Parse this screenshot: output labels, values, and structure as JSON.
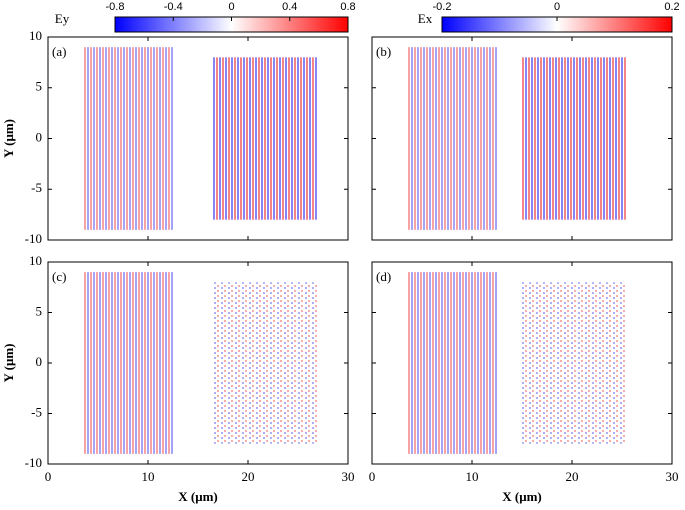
{
  "chart_data": [
    {
      "type": "heatmap",
      "panel_label": "(a)",
      "ylabel": "Y (μm)",
      "xlim": [
        0,
        30
      ],
      "xticks": [
        0,
        10,
        20,
        30
      ],
      "ylim": [
        -10,
        10
      ],
      "yticks": [
        -10,
        -5,
        0,
        5,
        10
      ],
      "colorbar": {
        "label": "Ey",
        "lim": [
          -0.8,
          0.8
        ],
        "ticks": [
          -0.8,
          -0.4,
          0,
          0.4,
          0.8
        ],
        "colors": [
          "#0000ff",
          "#ffffff",
          "#ff0000"
        ]
      }
    },
    {
      "type": "heatmap",
      "panel_label": "(b)",
      "xlim": [
        0,
        30
      ],
      "xticks": [
        0,
        10,
        20,
        30
      ],
      "ylim": [
        -10,
        10
      ],
      "yticks": [
        -10,
        -5,
        0,
        5,
        10
      ],
      "colorbar": {
        "label": "Ex",
        "lim": [
          -0.2,
          0.2
        ],
        "ticks": [
          -0.2,
          0,
          0.2
        ],
        "colors": [
          "#0000ff",
          "#ffffff",
          "#ff0000"
        ]
      }
    },
    {
      "type": "heatmap",
      "panel_label": "(c)",
      "ylabel": "Y (μm)",
      "xlabel": "X (μm)",
      "xlim": [
        0,
        30
      ],
      "xticks": [
        0,
        10,
        20,
        30
      ],
      "ylim": [
        -10,
        10
      ],
      "yticks": [
        -10,
        -5,
        0,
        5,
        10
      ]
    },
    {
      "type": "heatmap",
      "panel_label": "(d)",
      "xlabel": "X (μm)",
      "xlim": [
        0,
        30
      ],
      "xticks": [
        0,
        10,
        20,
        30
      ],
      "ylim": [
        -10,
        10
      ],
      "yticks": [
        -10,
        -5,
        0,
        5,
        10
      ]
    }
  ]
}
